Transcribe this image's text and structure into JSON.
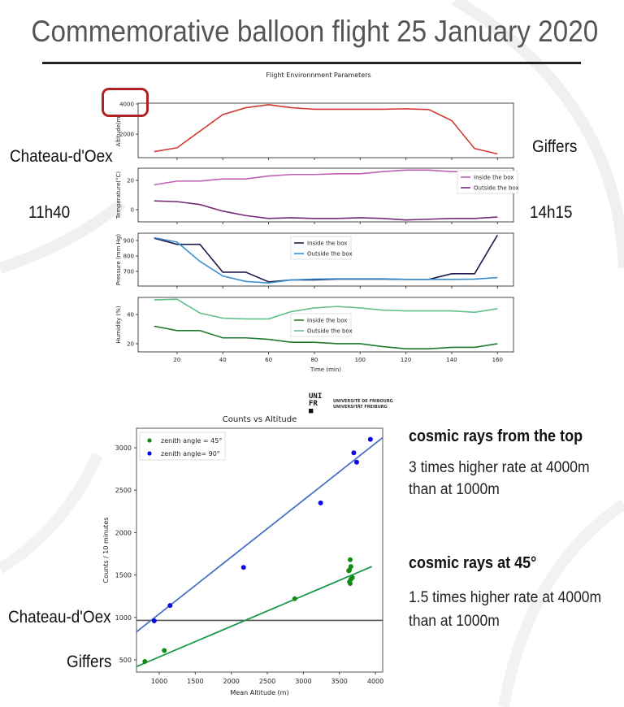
{
  "slide": {
    "title": "Commemorative balloon flight 25 January 2020",
    "labels": {
      "start_place_top": "Chateau-d'Oex",
      "start_time": "11h40",
      "end_place_top": "Giffers",
      "end_time": "14h15",
      "start_place_bottom": "Chateau-d'Oex",
      "end_place_bottom": "Giffers"
    },
    "logo": {
      "mark": "UNI FR",
      "line1": "UNIVERSITÉ DE FRIBOURG",
      "line2": "UNIVERSITÄT FREIBURG"
    },
    "notes": [
      {
        "heading": "cosmic rays from the top",
        "line1": "3 times higher rate at 4000m",
        "line2": "than at 1000m"
      },
      {
        "heading": "cosmic rays at 45°",
        "line1": "1.5 times higher rate at 4000m",
        "line2": "than at 1000m"
      }
    ],
    "highlight_color": "#b22222"
  },
  "chart_data": [
    {
      "type": "line",
      "title": "Flight Environnment Parameters",
      "ylabel": "Altitude(m)",
      "xlabel": "",
      "x": [
        10,
        20,
        30,
        40,
        50,
        60,
        70,
        80,
        90,
        100,
        110,
        120,
        130,
        140,
        150,
        160
      ],
      "xlim": [
        3,
        167
      ],
      "ylim": [
        450,
        4050
      ],
      "yticks": [
        2000,
        4000
      ],
      "xticks": [
        20,
        40,
        60,
        80,
        100,
        120,
        140,
        160
      ],
      "legend": "none",
      "series": [
        {
          "color": "#d13b32",
          "values": [
            850,
            1100,
            2200,
            3300,
            3750,
            3950,
            3750,
            3650,
            3650,
            3650,
            3650,
            3680,
            3630,
            2900,
            1050,
            700
          ]
        }
      ]
    },
    {
      "type": "line",
      "ylabel": "Temperature(°C)",
      "xlabel": "",
      "x": [
        10,
        20,
        30,
        40,
        50,
        60,
        70,
        80,
        90,
        100,
        110,
        120,
        130,
        140,
        150,
        160
      ],
      "xlim": [
        3,
        167
      ],
      "ylim": [
        -8.3,
        28.3
      ],
      "yticks": [
        0,
        20
      ],
      "xticks": [
        20,
        40,
        60,
        80,
        100,
        120,
        140,
        160
      ],
      "legend": "right",
      "series": [
        {
          "name": "Inside the box",
          "color": "#c060b4",
          "values": [
            17,
            19.5,
            19.5,
            21,
            21,
            23,
            24,
            24,
            24.5,
            24.5,
            26,
            27,
            27,
            26,
            26,
            26
          ]
        },
        {
          "name": "Outside the box",
          "color": "#762a78",
          "values": [
            6,
            5.5,
            3.5,
            -1,
            -4,
            -6,
            -5.5,
            -6,
            -6,
            -5.5,
            -6,
            -7,
            -6.5,
            -6,
            -6,
            -5
          ]
        }
      ]
    },
    {
      "type": "line",
      "ylabel": "Pressure (mm Hg)",
      "xlabel": "",
      "x": [
        10,
        20,
        30,
        40,
        50,
        60,
        70,
        80,
        90,
        100,
        110,
        120,
        130,
        140,
        150,
        160
      ],
      "xlim": [
        3,
        167
      ],
      "ylim": [
        605,
        947
      ],
      "yticks": [
        700,
        800,
        900
      ],
      "xticks": [
        20,
        40,
        60,
        80,
        100,
        120,
        140,
        160
      ],
      "legend": "top-center",
      "series": [
        {
          "name": "Inside the box",
          "color": "#1b1b4f",
          "values": [
            915,
            875,
            875,
            695,
            695,
            632,
            645,
            645,
            650,
            650,
            650,
            648,
            648,
            685,
            685,
            935
          ]
        },
        {
          "name": "Outside the box",
          "color": "#3b8fd0",
          "values": [
            918,
            890,
            765,
            670,
            635,
            625,
            645,
            650,
            652,
            652,
            652,
            648,
            648,
            648,
            650,
            660
          ]
        }
      ]
    },
    {
      "type": "line",
      "ylabel": "Humidity (%)",
      "xlabel": "Time (min)",
      "x": [
        10,
        20,
        30,
        40,
        50,
        60,
        70,
        80,
        90,
        100,
        110,
        120,
        130,
        140,
        150,
        160
      ],
      "xlim": [
        3,
        167
      ],
      "ylim": [
        14.4,
        51.7
      ],
      "yticks": [
        20,
        40
      ],
      "xticks": [
        20,
        40,
        60,
        80,
        100,
        120,
        140,
        160
      ],
      "legend": "center",
      "series": [
        {
          "name": "Inside the box",
          "color": "#1f7a2f",
          "values": [
            32,
            29,
            29,
            24,
            24,
            23,
            21,
            21,
            20,
            20,
            18,
            16.5,
            16.5,
            17.5,
            17.5,
            20
          ]
        },
        {
          "name": "Outside the box",
          "color": "#5fc08a",
          "values": [
            50,
            50.5,
            41,
            37.5,
            37,
            37,
            42,
            44.5,
            45.5,
            44.5,
            43,
            42.5,
            42.5,
            42.5,
            41.5,
            44
          ]
        }
      ]
    },
    {
      "type": "scatter",
      "title": "Counts vs Altitude",
      "xlabel": "Mean Altitude (m)",
      "ylabel": "Counts / 10 minutes",
      "xlim": [
        684,
        4101
      ],
      "ylim": [
        356,
        3230
      ],
      "xticks": [
        1000,
        1500,
        2000,
        2500,
        3000,
        3500,
        4000
      ],
      "yticks": [
        500,
        1000,
        1500,
        2000,
        2500,
        3000
      ],
      "legend": "top-left",
      "hline": {
        "y": 965,
        "color": "#555555"
      },
      "series": [
        {
          "name": "zenith angle = 45°",
          "color": "#138a13",
          "fit_color": "#18984a",
          "points": [
            [
              800,
              480
            ],
            [
              1070,
              610
            ],
            [
              2880,
              1220
            ],
            [
              3630,
              1550
            ],
            [
              3640,
              1560
            ],
            [
              3650,
              1680
            ],
            [
              3660,
              1600
            ],
            [
              3640,
              1420
            ],
            [
              3650,
              1400
            ],
            [
              3660,
              1450
            ],
            [
              3680,
              1470
            ]
          ],
          "fit": [
            [
              684,
              420
            ],
            [
              3950,
              1600
            ]
          ]
        },
        {
          "name": "zenith angle= 90°",
          "color": "#0a0ae6",
          "fit_color": "#4a72c8",
          "points": [
            [
              930,
              960
            ],
            [
              1150,
              1140
            ],
            [
              2170,
              1590
            ],
            [
              3240,
              2350
            ],
            [
              3700,
              2940
            ],
            [
              3740,
              2830
            ],
            [
              3930,
              3100
            ]
          ],
          "fit": [
            [
              684,
              830
            ],
            [
              4101,
              3120
            ]
          ]
        }
      ]
    }
  ]
}
